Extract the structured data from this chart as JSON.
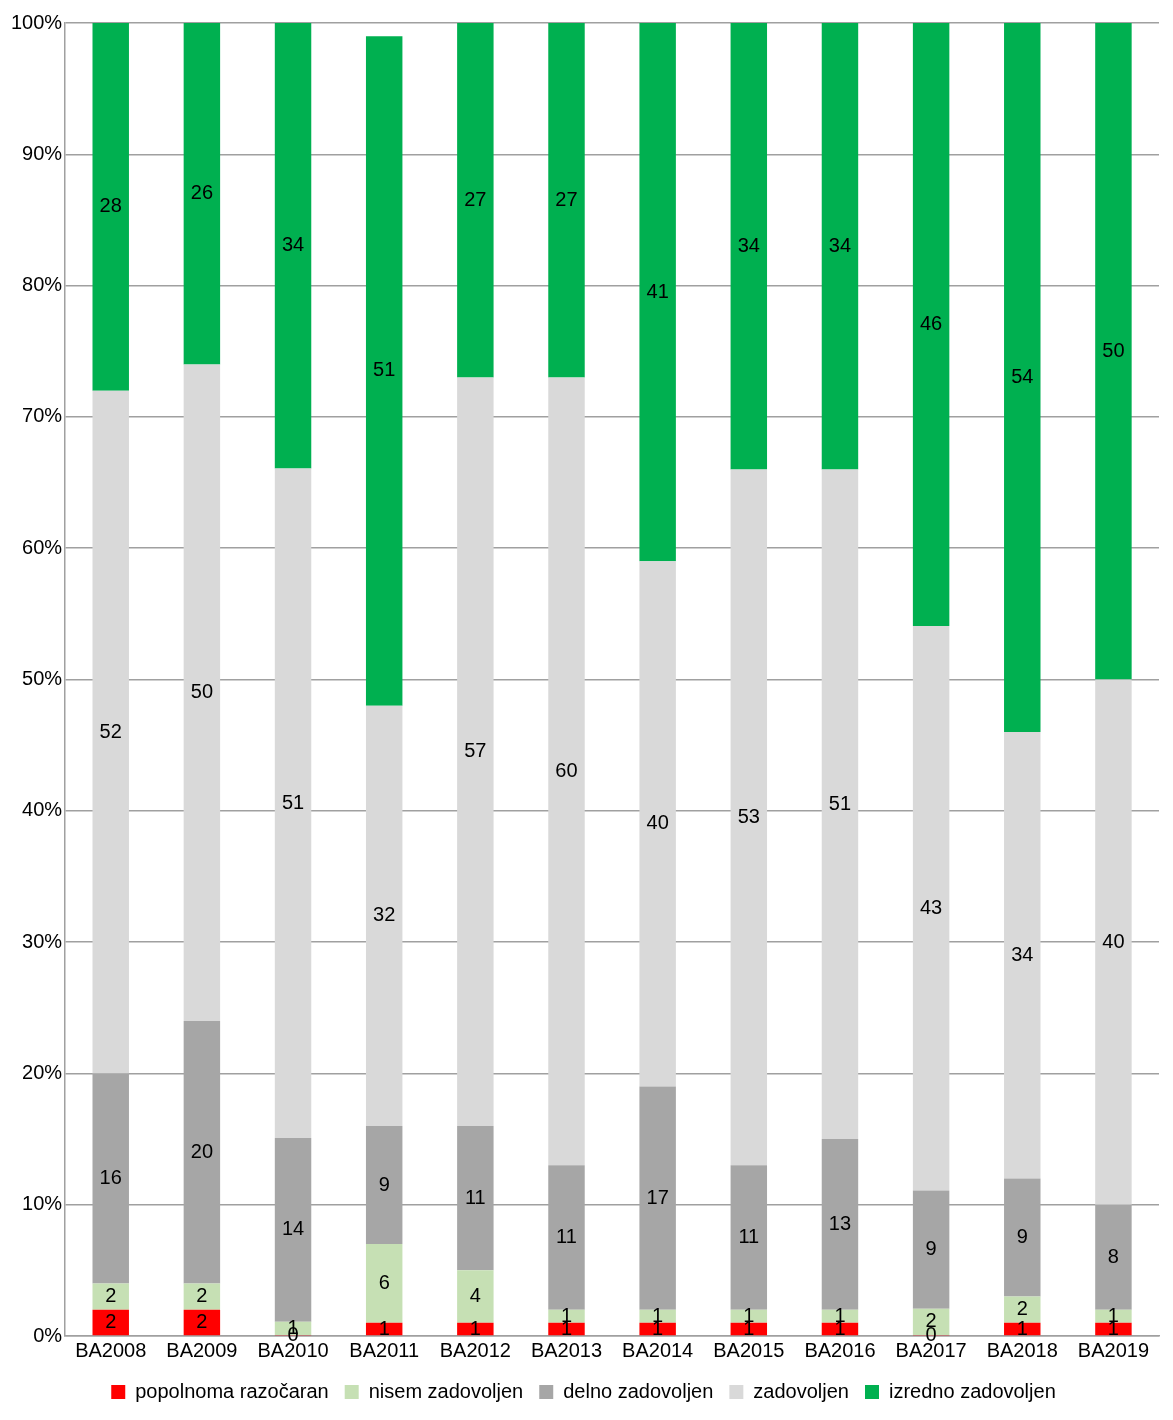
{
  "chart_data": {
    "type": "bar",
    "stacked": true,
    "categories": [
      "BA2008",
      "BA2009",
      "BA2010",
      "BA2011",
      "BA2012",
      "BA2013",
      "BA2014",
      "BA2015",
      "BA2016",
      "BA2017",
      "BA2018",
      "BA2019"
    ],
    "series": [
      {
        "name": "popolnoma razočaran",
        "color": "#ff0000",
        "values": [
          2,
          2,
          0,
          1,
          1,
          1,
          1,
          1,
          1,
          0,
          1,
          1
        ]
      },
      {
        "name": "nisem zadovoljen",
        "color": "#c6e0b4",
        "values": [
          2,
          2,
          1,
          6,
          4,
          1,
          1,
          1,
          1,
          2,
          2,
          1
        ]
      },
      {
        "name": "delno zadovoljen",
        "color": "#a6a6a6",
        "values": [
          16,
          20,
          14,
          9,
          11,
          11,
          17,
          11,
          13,
          9,
          9,
          8
        ]
      },
      {
        "name": "zadovoljen",
        "color": "#d9d9d9",
        "values": [
          52,
          50,
          51,
          32,
          57,
          60,
          40,
          53,
          51,
          43,
          34,
          40
        ]
      },
      {
        "name": "izredno zadovoljen",
        "color": "#00b050",
        "values": [
          28,
          26,
          34,
          51,
          27,
          27,
          41,
          34,
          34,
          46,
          54,
          50
        ]
      }
    ],
    "ylim": [
      0,
      100
    ],
    "yticks": [
      {
        "value": 0,
        "label": "0%"
      },
      {
        "value": 10,
        "label": "10%"
      },
      {
        "value": 20,
        "label": "20%"
      },
      {
        "value": 30,
        "label": "30%"
      },
      {
        "value": 40,
        "label": "40%"
      },
      {
        "value": 50,
        "label": "50%"
      },
      {
        "value": 60,
        "label": "60%"
      },
      {
        "value": 70,
        "label": "70%"
      },
      {
        "value": 80,
        "label": "80%"
      },
      {
        "value": 90,
        "label": "90%"
      },
      {
        "value": 100,
        "label": "100%"
      }
    ],
    "grid": "y",
    "legend": "bottom",
    "data_labels": true
  }
}
